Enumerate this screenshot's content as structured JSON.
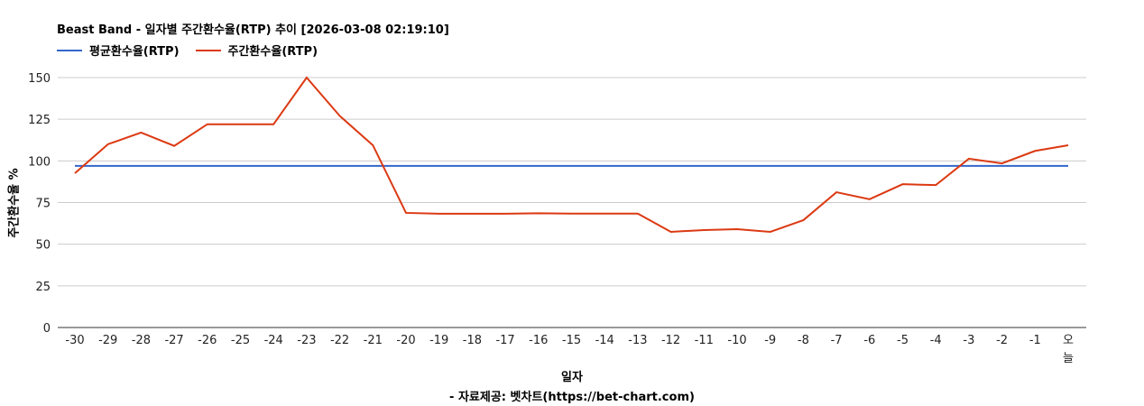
{
  "chart_data": {
    "type": "line",
    "title": "Beast Band - 일자별 주간환수율(RTP) 추이 [2026-03-08 02:19:10]",
    "xlabel": "일자",
    "ylabel": "주간환수율 %",
    "source": "- 자료제공: 벳차트(https://bet-chart.com)",
    "ylim": [
      0,
      150
    ],
    "yticks": [
      0,
      25,
      50,
      75,
      100,
      125,
      150
    ],
    "grid": true,
    "legend_position": "top-left",
    "categories": [
      "-30",
      "-29",
      "-28",
      "-27",
      "-26",
      "-25",
      "-24",
      "-23",
      "-22",
      "-21",
      "-20",
      "-19",
      "-18",
      "-17",
      "-16",
      "-15",
      "-14",
      "-13",
      "-12",
      "-11",
      "-10",
      "-9",
      "-8",
      "-7",
      "-6",
      "-5",
      "-4",
      "-3",
      "-2",
      "-1",
      "오늘"
    ],
    "series": [
      {
        "name": "평균환수율(RTP)",
        "color": "#3366cc",
        "values": [
          97,
          97,
          97,
          97,
          97,
          97,
          97,
          97,
          97,
          97,
          97,
          97,
          97,
          97,
          97,
          97,
          97,
          97,
          97,
          97,
          97,
          97,
          97,
          97,
          97,
          97,
          97,
          97,
          97,
          97,
          97
        ]
      },
      {
        "name": "주간환수율(RTP)",
        "color": "#dc3912",
        "values": [
          92.6,
          110,
          117,
          109,
          122,
          122,
          122,
          150,
          127,
          109.4,
          68.8,
          68.3,
          68.3,
          68.3,
          68.6,
          68.4,
          68.4,
          68.4,
          57.4,
          58.5,
          59,
          57.4,
          64.4,
          81.2,
          77,
          86,
          85.5,
          101.3,
          98.5,
          106,
          109.4
        ]
      }
    ]
  }
}
